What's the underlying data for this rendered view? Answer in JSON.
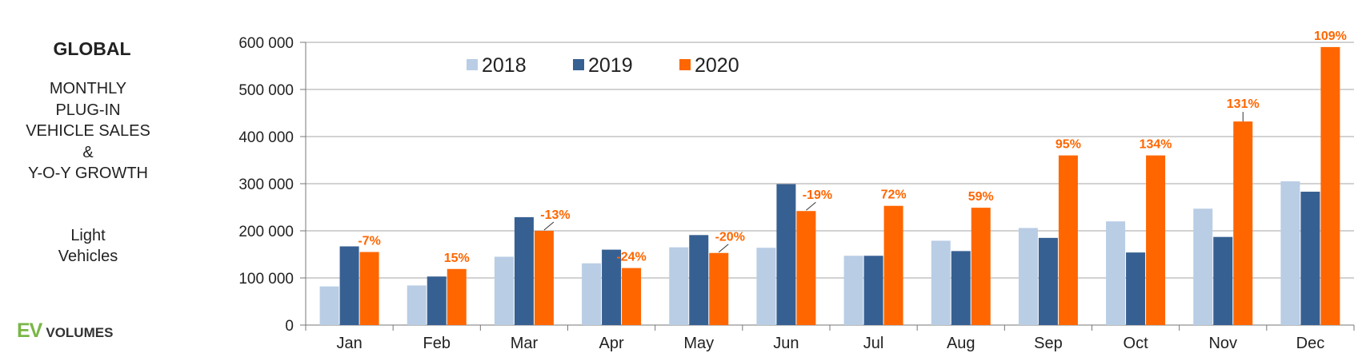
{
  "sidebar": {
    "title": "GLOBAL",
    "subtitle": "MONTHLY\nPLUG-IN\nVEHICLE SALES\n&\nY-O-Y GROWTH",
    "segment": "Light\nVehicles",
    "logo_ev": "EV",
    "logo_volumes": "VOLUMES"
  },
  "colors": {
    "2018": "#b9cde5",
    "2019": "#376092",
    "2020": "#ff6600",
    "growth_label": "#ff6600",
    "grid": "#a6a6a6",
    "axis_text": "#222222"
  },
  "chart_data": {
    "type": "bar",
    "categories": [
      "Jan",
      "Feb",
      "Mar",
      "Apr",
      "May",
      "Jun",
      "Jul",
      "Aug",
      "Sep",
      "Oct",
      "Nov",
      "Dec"
    ],
    "series": [
      {
        "name": "2018",
        "values": [
          82000,
          84000,
          145000,
          131000,
          165000,
          164000,
          147000,
          179000,
          206000,
          220000,
          247000,
          305000
        ]
      },
      {
        "name": "2019",
        "values": [
          167000,
          103000,
          229000,
          160000,
          191000,
          299000,
          147000,
          157000,
          185000,
          154000,
          187000,
          283000
        ]
      },
      {
        "name": "2020",
        "values": [
          155000,
          119000,
          200000,
          121000,
          153000,
          242000,
          253000,
          249000,
          360000,
          360000,
          432000,
          590000
        ]
      }
    ],
    "growth_labels": [
      "-7%",
      "15%",
      "-13%",
      "-24%",
      "-20%",
      "-19%",
      "72%",
      "59%",
      "95%",
      "134%",
      "131%",
      "109%"
    ],
    "yticks": [
      "0",
      "100 000",
      "200 000",
      "300 000",
      "400 000",
      "500 000",
      "600 000"
    ],
    "ylim": [
      0,
      600000
    ],
    "legend": [
      "2018",
      "2019",
      "2020"
    ],
    "legend_position": "top-left",
    "grid": true
  }
}
